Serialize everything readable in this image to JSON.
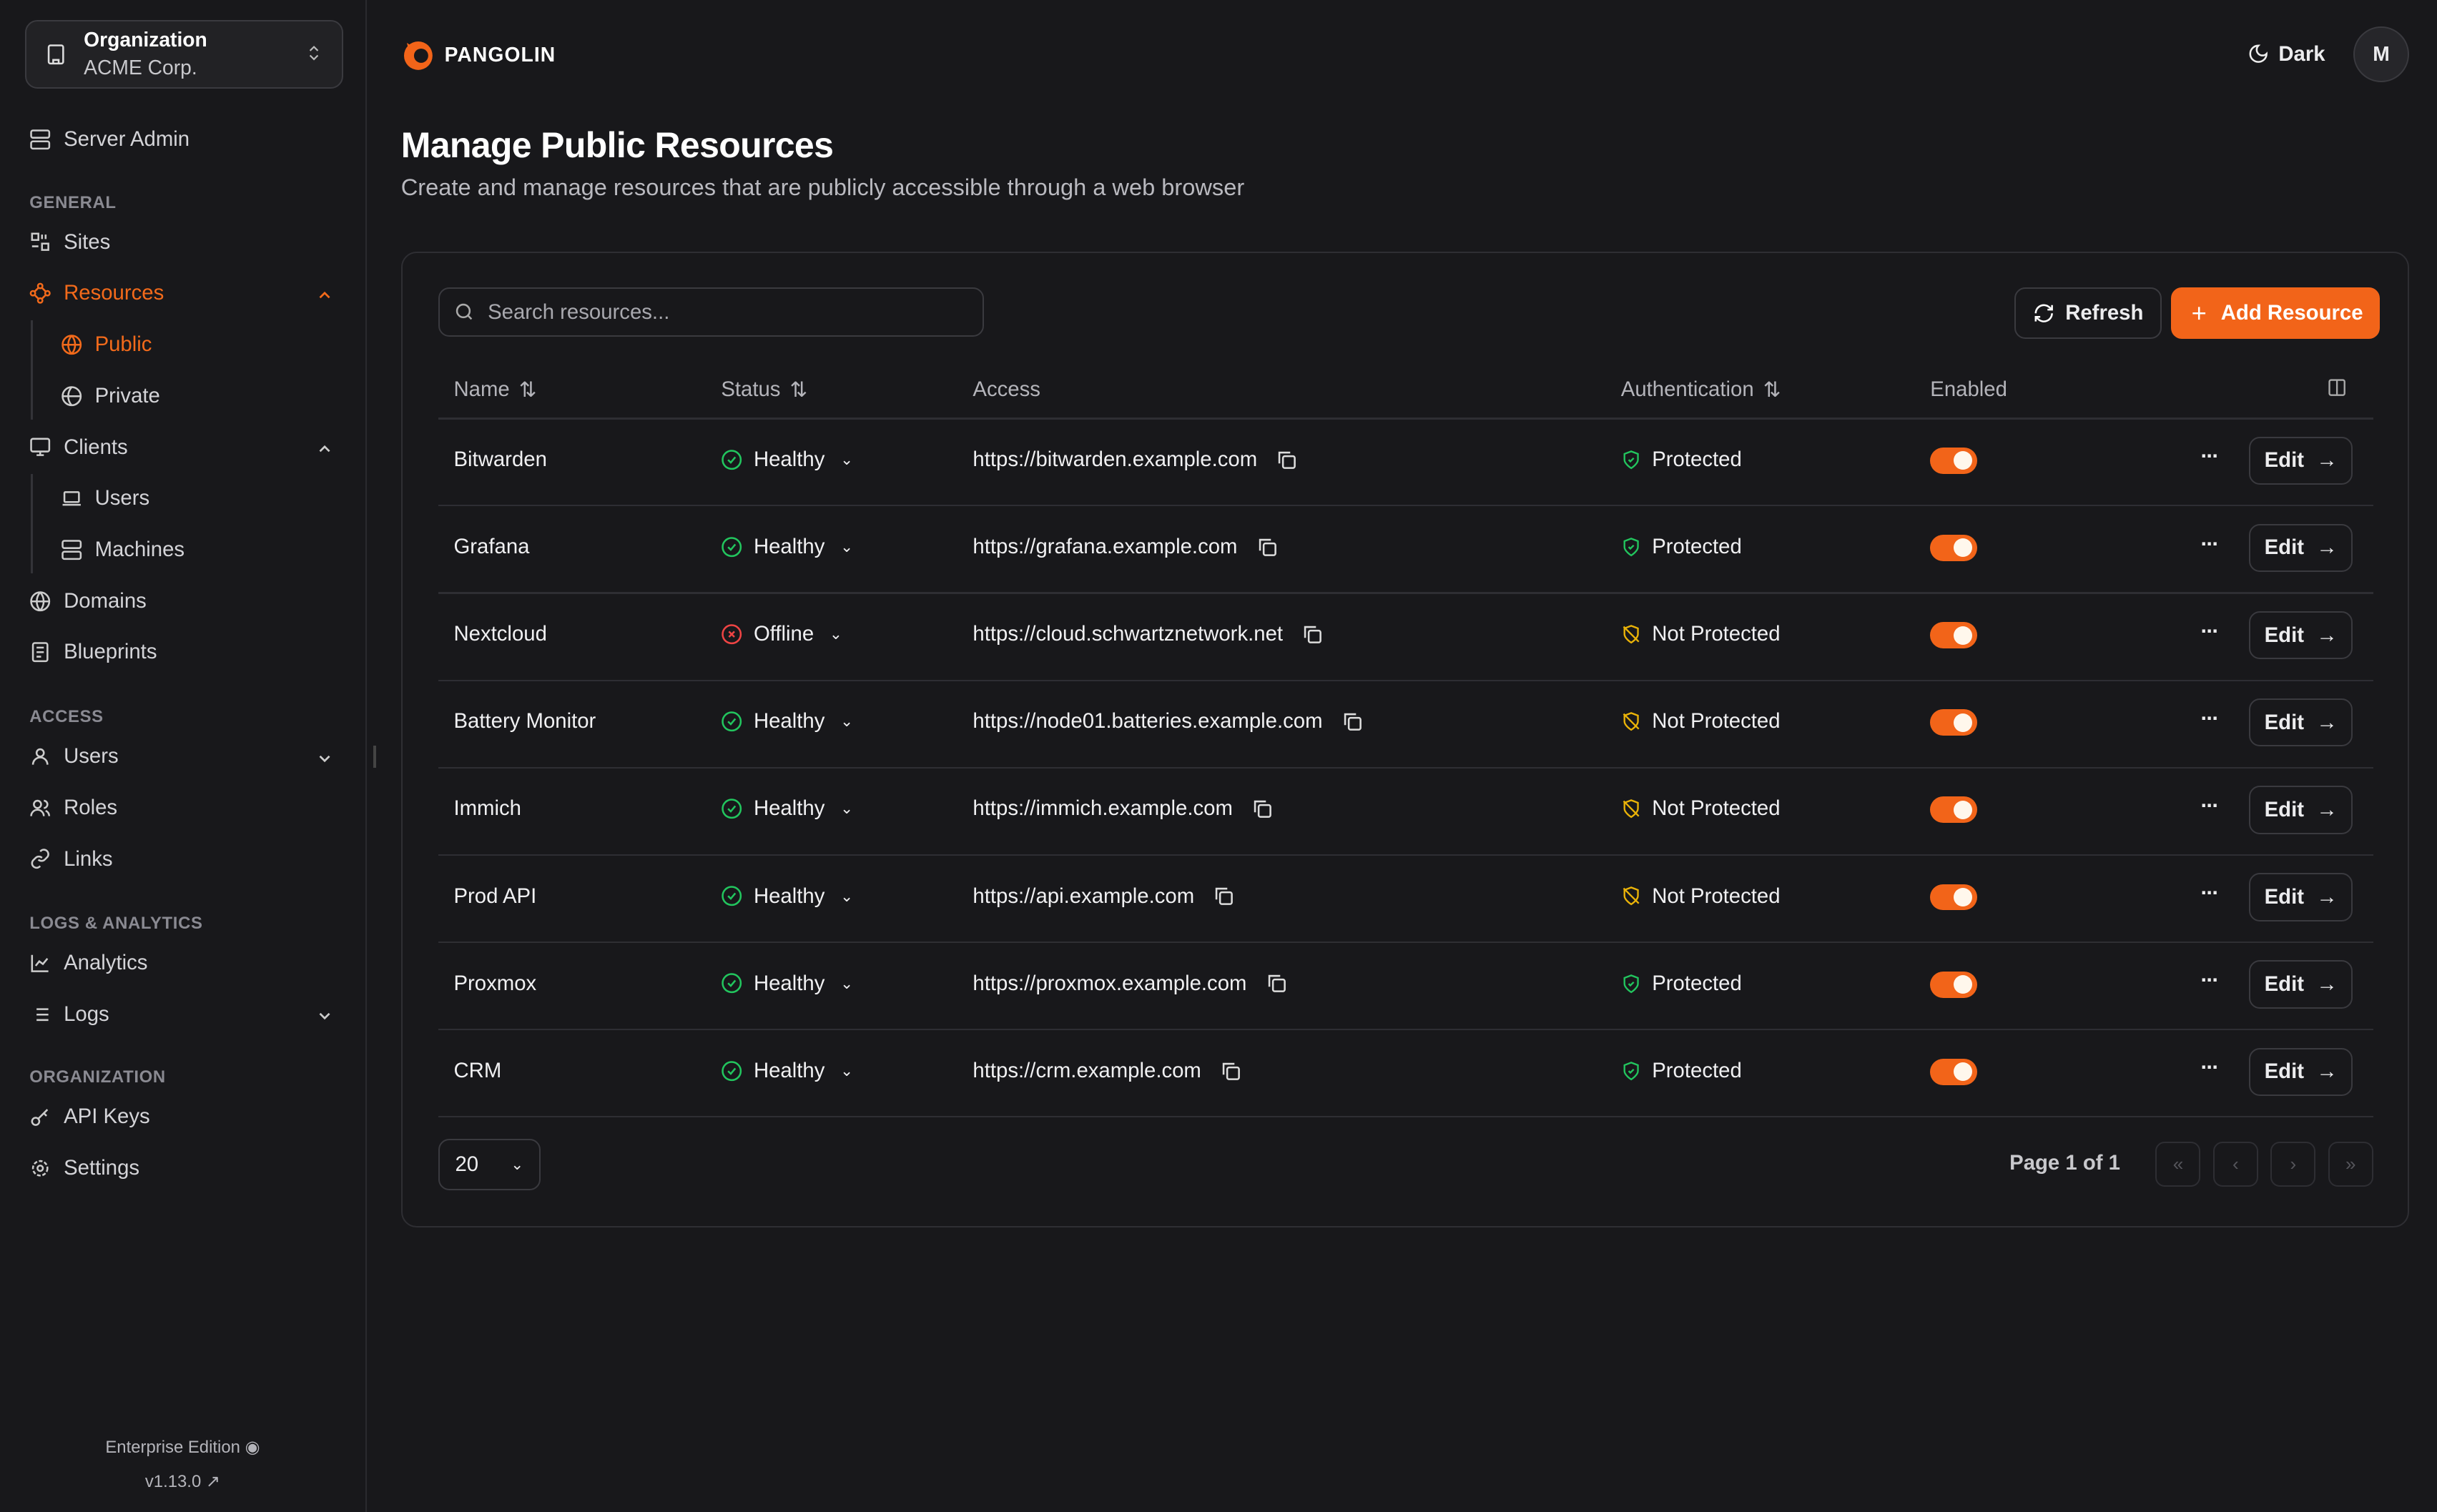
{
  "sidebar": {
    "org": {
      "label": "Organization",
      "name": "ACME Corp."
    },
    "server_admin": "Server Admin",
    "sections": {
      "general": "GENERAL",
      "access": "ACCESS",
      "logs": "LOGS & ANALYTICS",
      "organization": "ORGANIZATION"
    },
    "items": {
      "sites": "Sites",
      "resources": "Resources",
      "public": "Public",
      "private": "Private",
      "clients": "Clients",
      "users_client": "Users",
      "machines": "Machines",
      "domains": "Domains",
      "blueprints": "Blueprints",
      "users": "Users",
      "roles": "Roles",
      "links": "Links",
      "analytics": "Analytics",
      "logs": "Logs",
      "api_keys": "API Keys",
      "settings": "Settings"
    },
    "edition": "Enterprise Edition",
    "version": "v1.13.0"
  },
  "header": {
    "brand": "PANGOLIN",
    "theme": "Dark",
    "avatar": "M"
  },
  "page": {
    "title": "Manage Public Resources",
    "subtitle": "Create and manage resources that are publicly accessible through a web browser"
  },
  "toolbar": {
    "search_placeholder": "Search resources...",
    "refresh": "Refresh",
    "add": "Add Resource"
  },
  "table": {
    "columns": {
      "name": "Name",
      "status": "Status",
      "access": "Access",
      "auth": "Authentication",
      "enabled": "Enabled"
    },
    "edit_label": "Edit",
    "rows": [
      {
        "name": "Bitwarden",
        "status": "Healthy",
        "access": "https://bitwarden.example.com",
        "auth": "Protected",
        "enabled": true
      },
      {
        "name": "Grafana",
        "status": "Healthy",
        "access": "https://grafana.example.com",
        "auth": "Protected",
        "enabled": true
      },
      {
        "name": "Nextcloud",
        "status": "Offline",
        "access": "https://cloud.schwartznetwork.net",
        "auth": "Not Protected",
        "enabled": true
      },
      {
        "name": "Battery Monitor",
        "status": "Healthy",
        "access": "https://node01.batteries.example.com",
        "auth": "Not Protected",
        "enabled": true
      },
      {
        "name": "Immich",
        "status": "Healthy",
        "access": "https://immich.example.com",
        "auth": "Not Protected",
        "enabled": true
      },
      {
        "name": "Prod API",
        "status": "Healthy",
        "access": "https://api.example.com",
        "auth": "Not Protected",
        "enabled": true
      },
      {
        "name": "Proxmox",
        "status": "Healthy",
        "access": "https://proxmox.example.com",
        "auth": "Protected",
        "enabled": true
      },
      {
        "name": "CRM",
        "status": "Healthy",
        "access": "https://crm.example.com",
        "auth": "Protected",
        "enabled": true
      }
    ]
  },
  "pagination": {
    "page_size": "20",
    "page_info": "Page 1 of 1"
  },
  "colors": {
    "accent": "#f26419",
    "healthy": "#22c55e",
    "offline": "#ef4444",
    "not_protected": "#eab308"
  }
}
